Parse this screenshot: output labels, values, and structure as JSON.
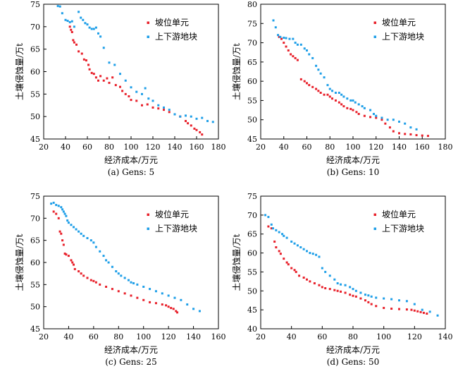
{
  "chart_data": [
    {
      "type": "scatter",
      "caption": "(a) Gens: 5",
      "xlabel": "经济成本/万元",
      "ylabel": "土壤侵蚀量/万t",
      "xlim": [
        20,
        180
      ],
      "ylim": [
        45,
        75
      ],
      "xticks": [
        20,
        40,
        60,
        80,
        100,
        120,
        140,
        160,
        180
      ],
      "yticks": [
        45,
        50,
        55,
        60,
        65,
        70,
        75
      ],
      "legend_position": "top-right",
      "series": [
        {
          "name": "坡位单元",
          "color": "#e8212b",
          "x": [
            44,
            45,
            46,
            47,
            48,
            50,
            52,
            55,
            57,
            59,
            61,
            62,
            64,
            66,
            68,
            70,
            72,
            75,
            78,
            80,
            83,
            86,
            90,
            92,
            95,
            98,
            100,
            105,
            110,
            115,
            120,
            125,
            130,
            135,
            140,
            145,
            150,
            152,
            155,
            158,
            160,
            163,
            165
          ],
          "y": [
            70,
            69.3,
            68.8,
            67,
            66.5,
            66,
            64.5,
            64,
            62.7,
            62.5,
            61.5,
            60.5,
            59.7,
            59.5,
            58.7,
            58,
            59,
            58,
            58.5,
            57.5,
            58.7,
            57,
            56.6,
            55.7,
            55,
            54.5,
            53.7,
            53.5,
            52.5,
            52.7,
            52,
            51.8,
            51.5,
            51,
            50.5,
            50,
            49,
            48.5,
            48,
            47.3,
            47,
            46.5,
            46
          ]
        },
        {
          "name": "上下游地块",
          "color": "#1f9fe8",
          "x": [
            33,
            35,
            37,
            40,
            42,
            44,
            46,
            48,
            52,
            54,
            56,
            58,
            60,
            62,
            64,
            66,
            68,
            70,
            72,
            75,
            80,
            85,
            90,
            95,
            100,
            105,
            110,
            113,
            116,
            120,
            125,
            130,
            135,
            140,
            145,
            150,
            155,
            160,
            165,
            170,
            175
          ],
          "y": [
            74.6,
            74.5,
            73,
            71.5,
            71.3,
            71,
            71.2,
            70,
            73.3,
            72,
            71.5,
            70.8,
            70.5,
            69.8,
            69.5,
            69.5,
            69.8,
            68.5,
            67.8,
            65.3,
            62,
            61.5,
            59.5,
            58,
            56.5,
            55.5,
            55,
            56.3,
            54,
            53.5,
            52.5,
            52,
            51.5,
            50.5,
            50,
            50.2,
            50,
            49.5,
            49.7,
            49,
            48.8
          ]
        }
      ]
    },
    {
      "type": "scatter",
      "caption": "(b) Gens: 10",
      "xlabel": "经济成本/万元",
      "ylabel": "土壤侵蚀量/万t",
      "xlim": [
        20,
        180
      ],
      "ylim": [
        45,
        80
      ],
      "xticks": [
        20,
        40,
        60,
        80,
        100,
        120,
        140,
        160,
        180
      ],
      "yticks": [
        45,
        50,
        55,
        60,
        65,
        70,
        75,
        80
      ],
      "legend_position": "top-right",
      "series": [
        {
          "name": "坡位单元",
          "color": "#e8212b",
          "x": [
            36,
            38,
            40,
            42,
            44,
            46,
            48,
            50,
            52,
            55,
            58,
            60,
            62,
            65,
            68,
            70,
            72,
            75,
            78,
            80,
            82,
            85,
            88,
            90,
            92,
            95,
            98,
            100,
            103,
            105,
            110,
            115,
            120,
            125,
            128,
            132,
            135,
            140,
            145,
            150,
            155,
            160,
            165
          ],
          "y": [
            71.5,
            71,
            70,
            69,
            68,
            67,
            66.5,
            66,
            65.5,
            60.5,
            60,
            59.5,
            59,
            58.5,
            58,
            57.5,
            57,
            56.5,
            56.5,
            56,
            55.5,
            55,
            54.5,
            54,
            53.5,
            53,
            52.8,
            52.5,
            52,
            51.5,
            51,
            50.7,
            50.5,
            50,
            49,
            48,
            47,
            46.5,
            46.3,
            46.2,
            46,
            45.9,
            45.8
          ]
        },
        {
          "name": "上下游地块",
          "color": "#1f9fe8",
          "x": [
            31,
            33,
            35,
            37,
            40,
            42,
            45,
            48,
            50,
            52,
            55,
            58,
            60,
            62,
            65,
            68,
            70,
            72,
            75,
            78,
            80,
            82,
            85,
            88,
            90,
            92,
            95,
            98,
            100,
            102,
            105,
            108,
            110,
            115,
            118,
            120,
            125,
            130,
            135,
            140,
            145,
            150,
            155
          ],
          "y": [
            75.8,
            74,
            72,
            71.5,
            71.3,
            71.2,
            71,
            71,
            70,
            69.5,
            69.5,
            68.5,
            68,
            67,
            66,
            64,
            63,
            62,
            61,
            59,
            58,
            57.5,
            57,
            57,
            56.5,
            56,
            55.5,
            55,
            55,
            54.5,
            54,
            53.5,
            53,
            52.5,
            51.5,
            51,
            50.5,
            50,
            50,
            49.5,
            49,
            48,
            47.5
          ]
        }
      ]
    },
    {
      "type": "scatter",
      "caption": "(c) Gens: 25",
      "xlabel": "经济成本/万元",
      "ylabel": "土壤侵蚀量/万t",
      "xlim": [
        20,
        160
      ],
      "ylim": [
        45,
        75
      ],
      "xticks": [
        20,
        40,
        60,
        80,
        100,
        120,
        140,
        160
      ],
      "yticks": [
        45,
        50,
        55,
        60,
        65,
        70,
        75
      ],
      "legend_position": "top-right",
      "series": [
        {
          "name": "坡位单元",
          "color": "#e8212b",
          "x": [
            28,
            30,
            32,
            33,
            34,
            35,
            36,
            37,
            38,
            40,
            42,
            43,
            44,
            45,
            48,
            50,
            52,
            55,
            58,
            60,
            62,
            65,
            70,
            75,
            80,
            85,
            90,
            95,
            100,
            105,
            110,
            115,
            118,
            120,
            122,
            124,
            126,
            127
          ],
          "y": [
            71.5,
            71,
            70,
            67,
            66.5,
            65,
            64,
            62,
            61.8,
            61.5,
            60.5,
            60,
            59.5,
            58.5,
            58,
            57.5,
            57,
            56.5,
            56,
            55.8,
            55.5,
            55,
            54.5,
            54,
            53.5,
            53,
            52.5,
            52,
            51.5,
            51,
            50.8,
            50.5,
            50.3,
            50,
            49.7,
            49.5,
            49,
            48.7
          ]
        },
        {
          "name": "上下游地块",
          "color": "#1f9fe8",
          "x": [
            26,
            28,
            30,
            32,
            34,
            35,
            36,
            37,
            38,
            39,
            40,
            42,
            44,
            46,
            48,
            50,
            52,
            55,
            58,
            60,
            62,
            65,
            68,
            70,
            72,
            75,
            78,
            80,
            82,
            85,
            88,
            90,
            92,
            95,
            100,
            105,
            110,
            115,
            120,
            125,
            130,
            135,
            140,
            145
          ],
          "y": [
            73.3,
            73.5,
            73,
            72.8,
            72.5,
            72,
            71.5,
            71,
            70.5,
            69.5,
            69,
            68.5,
            68,
            67.5,
            67,
            66.5,
            66,
            65.5,
            65,
            64.5,
            63.5,
            62.5,
            61.5,
            60.5,
            60,
            59,
            58,
            57.5,
            57,
            56.5,
            56,
            55.5,
            55.3,
            55,
            54.5,
            54,
            53.5,
            53,
            52.5,
            52,
            51.5,
            50.5,
            49.5,
            49
          ]
        }
      ]
    },
    {
      "type": "scatter",
      "caption": "(d) Gens: 50",
      "xlabel": "经济成本/万元",
      "ylabel": "土壤侵蚀量/万t",
      "xlim": [
        20,
        140
      ],
      "ylim": [
        40,
        75
      ],
      "xticks": [
        20,
        40,
        60,
        80,
        100,
        120,
        140
      ],
      "yticks": [
        40,
        45,
        50,
        55,
        60,
        65,
        70,
        75
      ],
      "legend_position": "top-right",
      "series": [
        {
          "name": "坡位单元",
          "color": "#e8212b",
          "x": [
            25,
            27,
            29,
            30,
            32,
            33,
            35,
            37,
            38,
            40,
            42,
            43,
            45,
            48,
            50,
            52,
            55,
            58,
            60,
            62,
            65,
            68,
            70,
            72,
            75,
            78,
            80,
            82,
            85,
            88,
            90,
            92,
            95,
            100,
            105,
            110,
            115,
            118,
            120,
            122,
            124,
            126,
            128
          ],
          "y": [
            67,
            66.5,
            63,
            61.5,
            60.5,
            59.8,
            58.5,
            57.5,
            57,
            56,
            55.5,
            55,
            54,
            53.5,
            53,
            52.5,
            52,
            51.5,
            51,
            50.7,
            50.5,
            50.2,
            50,
            49.8,
            49.5,
            49,
            48.7,
            48.5,
            48,
            47.5,
            47,
            46.5,
            46,
            45.5,
            45.3,
            45.2,
            45.1,
            45,
            44.8,
            44.6,
            44.4,
            44.2,
            44
          ]
        },
        {
          "name": "上下游地块",
          "color": "#1f9fe8",
          "x": [
            23,
            25,
            27,
            28,
            30,
            32,
            34,
            35,
            37,
            40,
            42,
            44,
            46,
            48,
            50,
            52,
            54,
            56,
            58,
            60,
            62,
            65,
            68,
            70,
            72,
            75,
            78,
            80,
            82,
            85,
            88,
            90,
            92,
            95,
            100,
            105,
            110,
            115,
            120,
            125,
            130,
            135
          ],
          "y": [
            70,
            69.5,
            67.5,
            66.5,
            66,
            65.5,
            65,
            64.5,
            64,
            63,
            62.5,
            62,
            61.5,
            61,
            60.5,
            60,
            59.8,
            59.5,
            59,
            56,
            55,
            54,
            53,
            52,
            51.7,
            51.5,
            51,
            50.5,
            50,
            49.5,
            49,
            48.8,
            48.5,
            48.2,
            48,
            47.8,
            47.5,
            47.3,
            46.5,
            45,
            44.5,
            43.5
          ]
        }
      ]
    }
  ]
}
